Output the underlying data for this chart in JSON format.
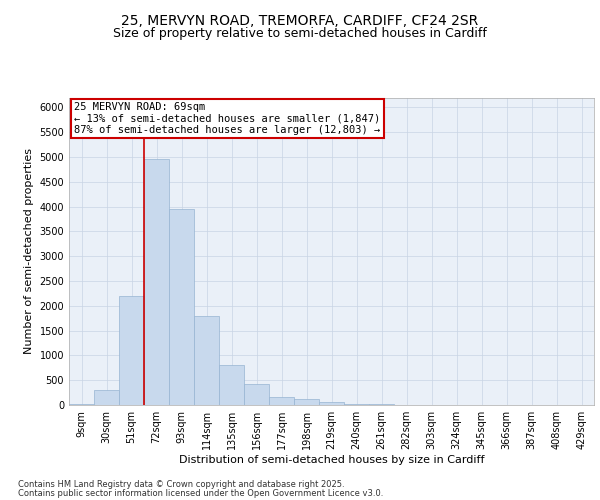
{
  "title1": "25, MERVYN ROAD, TREMORFA, CARDIFF, CF24 2SR",
  "title2": "Size of property relative to semi-detached houses in Cardiff",
  "xlabel": "Distribution of semi-detached houses by size in Cardiff",
  "ylabel": "Number of semi-detached properties",
  "categories": [
    "9sqm",
    "30sqm",
    "51sqm",
    "72sqm",
    "93sqm",
    "114sqm",
    "135sqm",
    "156sqm",
    "177sqm",
    "198sqm",
    "219sqm",
    "240sqm",
    "261sqm",
    "282sqm",
    "303sqm",
    "324sqm",
    "345sqm",
    "366sqm",
    "387sqm",
    "408sqm",
    "429sqm"
  ],
  "values": [
    30,
    300,
    2200,
    4950,
    3950,
    1800,
    800,
    430,
    160,
    120,
    60,
    30,
    15,
    10,
    5,
    3,
    2,
    1,
    0,
    0,
    0
  ],
  "bar_color": "#c8d9ed",
  "bar_edge_color": "#96b4d2",
  "grid_color": "#c8d4e4",
  "bg_color": "#eaf0f8",
  "annotation_box_color": "#cc0000",
  "property_line_color": "#cc0000",
  "annotation_title": "25 MERVYN ROAD: 69sqm",
  "annotation_line2": "← 13% of semi-detached houses are smaller (1,847)",
  "annotation_line3": "87% of semi-detached houses are larger (12,803) →",
  "footer1": "Contains HM Land Registry data © Crown copyright and database right 2025.",
  "footer2": "Contains public sector information licensed under the Open Government Licence v3.0.",
  "ylim": [
    0,
    6200
  ],
  "yticks": [
    0,
    500,
    1000,
    1500,
    2000,
    2500,
    3000,
    3500,
    4000,
    4500,
    5000,
    5500,
    6000
  ],
  "title1_fontsize": 10,
  "title2_fontsize": 9,
  "axis_label_fontsize": 8,
  "tick_fontsize": 7,
  "annotation_fontsize": 7.5,
  "footer_fontsize": 6
}
